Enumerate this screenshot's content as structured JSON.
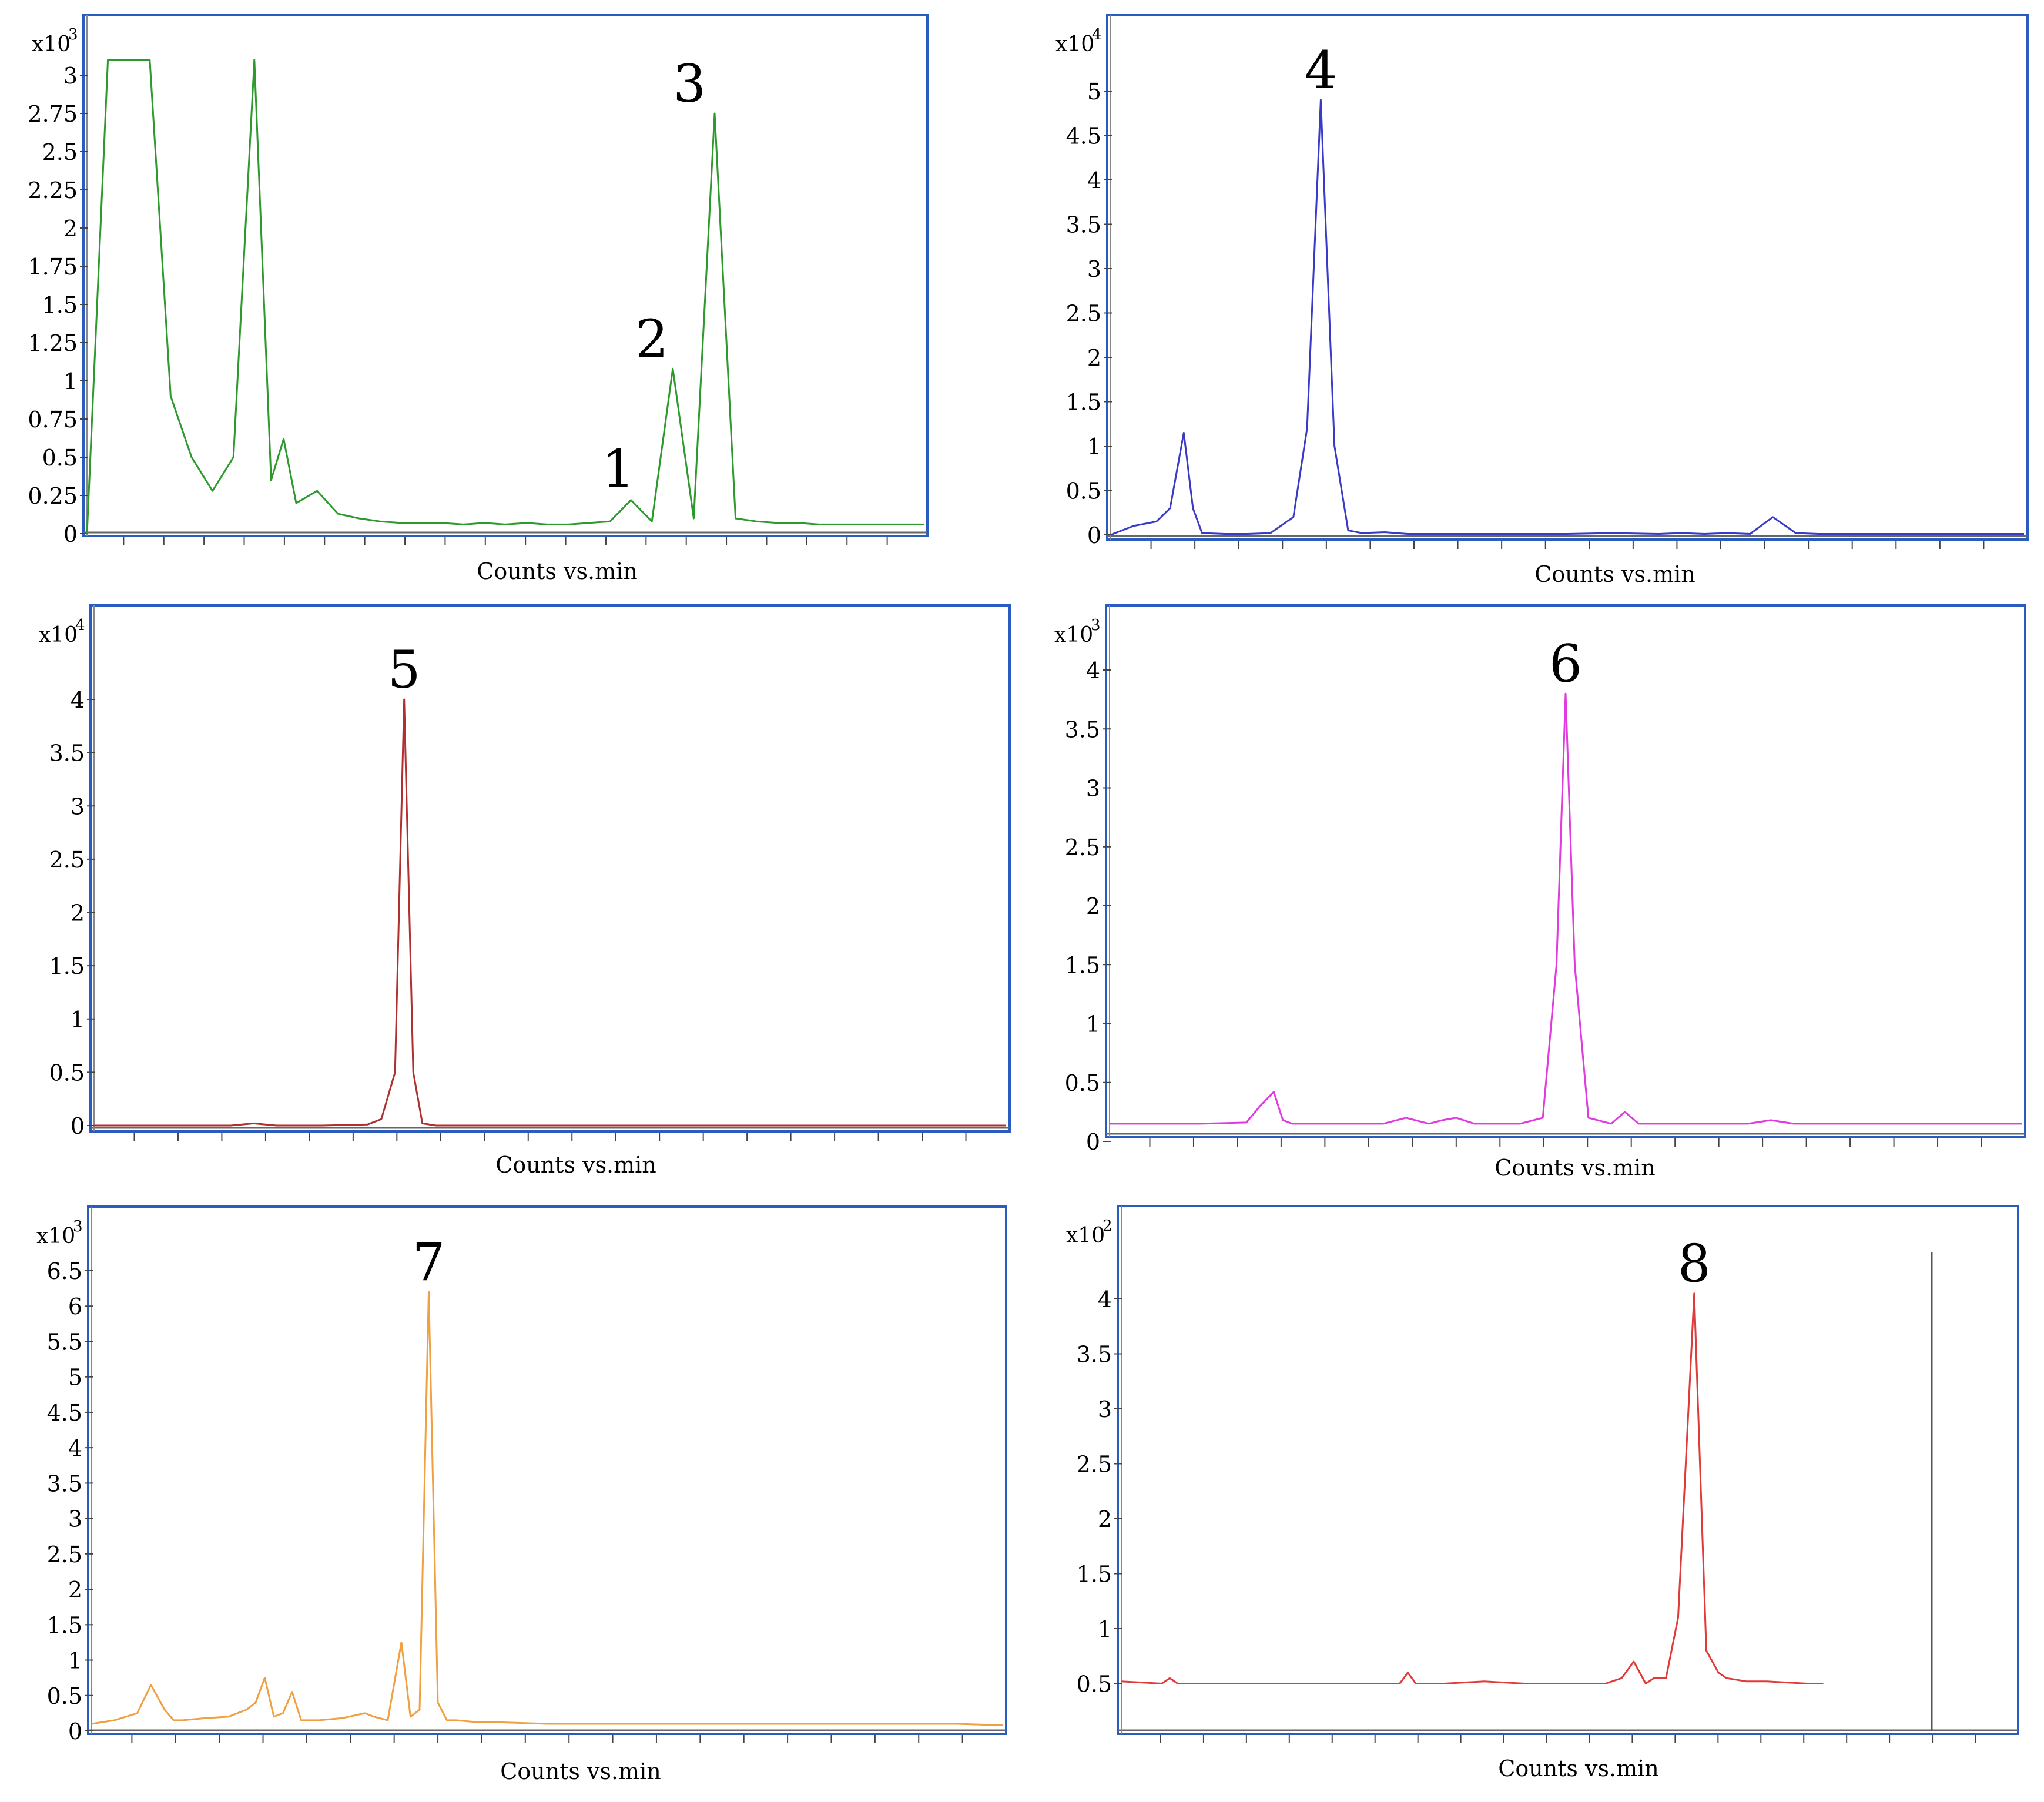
{
  "chart_data": [
    {
      "type": "line",
      "xlabel": "Counts vs.min",
      "ylabel_multiplier": {
        "base": "x10",
        "exp": "3"
      },
      "ylim": [
        0,
        3.05
      ],
      "y_ticks": [
        "0",
        "0.25",
        "0.5",
        "0.75",
        "1",
        "1.25",
        "1.5",
        "1.75",
        "2",
        "2.25",
        "2.5",
        "2.75",
        "3"
      ],
      "x_tick_count": 20,
      "color": "#2e9a2e",
      "grid": false,
      "series": [
        {
          "x": [
            0,
            0.5,
            1,
            1.5,
            2,
            2.5,
            3,
            3.5,
            4,
            4.4,
            4.7,
            5,
            5.5,
            6,
            6.5,
            7,
            7.5,
            8,
            8.5,
            9,
            9.5,
            10,
            10.5,
            11,
            11.5,
            12,
            12.5,
            13,
            13.5,
            14,
            14.5,
            15,
            15.5,
            16,
            16.5,
            17,
            17.5,
            18,
            18.5,
            19,
            19.5,
            20
          ],
          "y": [
            0,
            3.1,
            3.1,
            3.1,
            0.9,
            0.5,
            0.28,
            0.5,
            3.1,
            0.35,
            0.62,
            0.2,
            0.28,
            0.13,
            0.1,
            0.08,
            0.07,
            0.07,
            0.07,
            0.06,
            0.07,
            0.06,
            0.07,
            0.06,
            0.06,
            0.07,
            0.08,
            0.22,
            0.08,
            1.08,
            0.1,
            2.75,
            0.1,
            0.08,
            0.07,
            0.07,
            0.06,
            0.06,
            0.06,
            0.06,
            0.06,
            0.06
          ]
        }
      ],
      "annotations": [
        {
          "label": "1",
          "x": 12.7,
          "y": 0.23
        },
        {
          "label": "2",
          "x": 13.5,
          "y": 1.08
        },
        {
          "label": "3",
          "x": 14.4,
          "y": 2.75
        }
      ]
    },
    {
      "type": "line",
      "xlabel": "Counts vs.min",
      "ylabel_multiplier": {
        "base": "x10",
        "exp": "4"
      },
      "ylim": [
        0,
        5.55
      ],
      "y_ticks": [
        "0",
        "0.5",
        "1",
        "1.5",
        "2",
        "2.5",
        "3",
        "3.5",
        "4",
        "4.5",
        "5"
      ],
      "x_tick_count": 20,
      "color": "#3a3ac8",
      "grid": false,
      "series": [
        {
          "x": [
            0,
            0.5,
            1,
            1.3,
            1.6,
            1.8,
            2,
            2.5,
            3,
            3.5,
            4,
            4.3,
            4.6,
            4.9,
            5.2,
            5.5,
            6,
            6.5,
            7,
            8,
            9,
            10,
            11,
            12,
            12.5,
            13,
            13.5,
            14,
            14.5,
            15,
            15.5,
            16,
            17,
            18,
            19,
            20
          ],
          "y": [
            0,
            0.1,
            0.15,
            0.3,
            1.15,
            0.3,
            0.02,
            0.01,
            0.01,
            0.02,
            0.2,
            1.2,
            4.9,
            1.0,
            0.05,
            0.02,
            0.03,
            0.01,
            0.01,
            0.01,
            0.01,
            0.01,
            0.02,
            0.01,
            0.02,
            0.01,
            0.02,
            0.01,
            0.2,
            0.02,
            0.01,
            0.01,
            0.01,
            0.01,
            0.01,
            0.01
          ]
        }
      ],
      "annotations": [
        {
          "label": "4",
          "x": 4.6,
          "y": 4.9
        }
      ]
    },
    {
      "type": "line",
      "xlabel": "Counts vs.min",
      "ylabel_multiplier": {
        "base": "x10",
        "exp": "4"
      },
      "ylim": [
        0,
        4.15
      ],
      "y_ticks": [
        "0",
        "0.5",
        "1",
        "1.5",
        "2",
        "2.5",
        "3",
        "3.5",
        "4"
      ],
      "x_tick_count": 20,
      "color": "#b03030",
      "grid": false,
      "series": [
        {
          "x": [
            0,
            1,
            2,
            3,
            3.5,
            4,
            5,
            6,
            6.3,
            6.6,
            6.8,
            7,
            7.2,
            7.5,
            8,
            9,
            10,
            11,
            12,
            13,
            14,
            15,
            16,
            17,
            18,
            19,
            20
          ],
          "y": [
            0,
            0,
            0,
            0,
            0.02,
            0,
            0,
            0.01,
            0.06,
            0.5,
            4.0,
            0.5,
            0.02,
            0,
            0,
            0,
            0,
            0,
            0,
            0,
            0,
            0,
            0,
            0,
            0,
            0,
            0
          ]
        }
      ],
      "annotations": [
        {
          "label": "5",
          "x": 6.8,
          "y": 4.0
        }
      ]
    },
    {
      "type": "line",
      "xlabel": "Counts vs.min",
      "ylabel_multiplier": {
        "base": "x10",
        "exp": "3"
      },
      "ylim": [
        0,
        4.15
      ],
      "y_ticks": [
        "0",
        "0.5",
        "1",
        "1.5",
        "2",
        "2.5",
        "3",
        "3.5",
        "4"
      ],
      "x_tick_count": 20,
      "color": "#e03ae0",
      "grid": false,
      "series": [
        {
          "x": [
            0,
            1,
            2,
            3,
            3.3,
            3.6,
            3.8,
            4,
            4.5,
            5,
            6,
            6.5,
            7,
            7.3,
            7.6,
            8,
            9,
            9.5,
            9.8,
            10,
            10.2,
            10.5,
            11,
            11.3,
            11.6,
            12,
            13,
            14,
            14.5,
            15,
            16,
            17,
            18,
            19,
            20
          ],
          "y": [
            0.15,
            0.15,
            0.15,
            0.16,
            0.3,
            0.42,
            0.18,
            0.15,
            0.15,
            0.15,
            0.15,
            0.2,
            0.15,
            0.18,
            0.2,
            0.15,
            0.15,
            0.2,
            1.5,
            3.8,
            1.5,
            0.2,
            0.15,
            0.25,
            0.15,
            0.15,
            0.15,
            0.15,
            0.18,
            0.15,
            0.15,
            0.15,
            0.15,
            0.15,
            0.15
          ]
        }
      ],
      "annotations": [
        {
          "label": "6",
          "x": 10.0,
          "y": 3.8
        }
      ]
    },
    {
      "type": "line",
      "xlabel": "Counts vs.min",
      "ylabel_multiplier": {
        "base": "x10",
        "exp": "3"
      },
      "ylim": [
        0,
        6.95
      ],
      "y_ticks": [
        "0",
        "0.5",
        "1",
        "1.5",
        "2",
        "2.5",
        "3",
        "3.5",
        "4",
        "4.5",
        "5",
        "5.5",
        "6",
        "6.5"
      ],
      "x_tick_count": 20,
      "color": "#f0a040",
      "grid": false,
      "series": [
        {
          "x": [
            0,
            0.5,
            1,
            1.3,
            1.6,
            1.8,
            2,
            2.5,
            3,
            3.4,
            3.6,
            3.8,
            4,
            4.2,
            4.4,
            4.6,
            4.8,
            5,
            5.5,
            6,
            6.2,
            6.5,
            6.8,
            7,
            7.2,
            7.4,
            7.6,
            7.8,
            8,
            8.5,
            9,
            10,
            11,
            12,
            13,
            14,
            15,
            16,
            17,
            18,
            19,
            20
          ],
          "y": [
            0.1,
            0.15,
            0.25,
            0.65,
            0.3,
            0.15,
            0.15,
            0.18,
            0.2,
            0.3,
            0.4,
            0.75,
            0.2,
            0.25,
            0.55,
            0.15,
            0.15,
            0.15,
            0.18,
            0.25,
            0.2,
            0.15,
            1.25,
            0.2,
            0.3,
            6.2,
            0.4,
            0.15,
            0.15,
            0.12,
            0.12,
            0.1,
            0.1,
            0.1,
            0.1,
            0.1,
            0.1,
            0.1,
            0.1,
            0.1,
            0.1,
            0.08
          ]
        }
      ],
      "annotations": [
        {
          "label": "7",
          "x": 7.4,
          "y": 6.2
        }
      ]
    },
    {
      "type": "line",
      "xlabel": "Counts vs.min",
      "ylabel_multiplier": {
        "base": "x10",
        "exp": "2"
      },
      "ylim": [
        0,
        4.15
      ],
      "y_ticks": [
        "0.5",
        "1",
        "1.5",
        "2",
        "2.5",
        "3",
        "3.5",
        "4"
      ],
      "x_tick_count": 20,
      "color": "#e03a3a",
      "grid": false,
      "series": [
        {
          "x": [
            0,
            1,
            1.2,
            1.4,
            2,
            3,
            4,
            5,
            6,
            6.9,
            7.1,
            7.3,
            8,
            9,
            10,
            11,
            12,
            12.4,
            12.7,
            13,
            13.2,
            13.5,
            13.8,
            14.2,
            14.5,
            14.8,
            15,
            15.5,
            16,
            17,
            17.4
          ],
          "y": [
            0.52,
            0.5,
            0.55,
            0.5,
            0.5,
            0.5,
            0.5,
            0.5,
            0.5,
            0.5,
            0.6,
            0.5,
            0.5,
            0.52,
            0.5,
            0.5,
            0.5,
            0.55,
            0.7,
            0.5,
            0.55,
            0.55,
            1.1,
            4.05,
            0.8,
            0.6,
            0.55,
            0.52,
            0.52,
            0.5,
            0.5
          ]
        }
      ],
      "annotations": [
        {
          "label": "8",
          "x": 14.2,
          "y": 4.05
        }
      ]
    }
  ]
}
